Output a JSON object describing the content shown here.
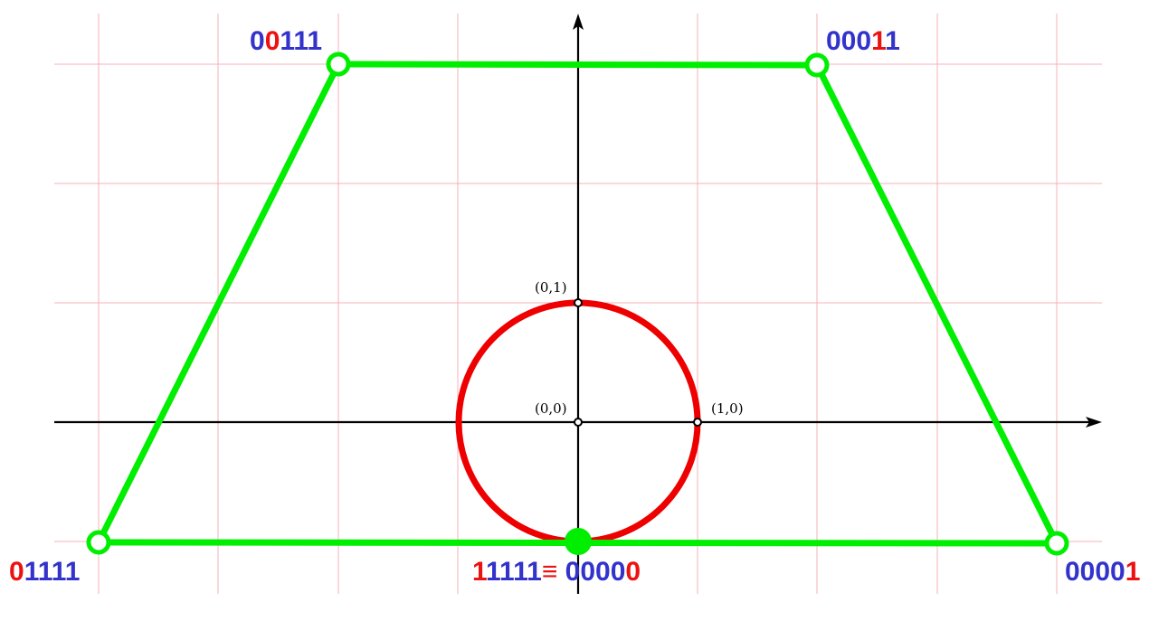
{
  "colors": {
    "grid": "#f4b0b8",
    "polygon": "#00ee00",
    "circle": "#ee0000",
    "digit_red": "#ee1111",
    "digit_blue": "#3333cc",
    "axis": "#000000"
  },
  "points": {
    "origin": "(0,0)",
    "unit_x": "(1,0)",
    "unit_y": "(0,1)"
  },
  "vertex_labels": {
    "top_left": {
      "parts": [
        {
          "text": "0",
          "color": "blue"
        },
        {
          "text": "0",
          "color": "red"
        },
        {
          "text": "111",
          "color": "blue"
        }
      ]
    },
    "top_right": {
      "parts": [
        {
          "text": "000",
          "color": "blue"
        },
        {
          "text": "1",
          "color": "red"
        },
        {
          "text": "1",
          "color": "blue"
        }
      ]
    },
    "bottom_left": {
      "parts": [
        {
          "text": "0",
          "color": "red"
        },
        {
          "text": "1111",
          "color": "blue"
        }
      ]
    },
    "bottom_right": {
      "parts": [
        {
          "text": "0000",
          "color": "blue"
        },
        {
          "text": "1",
          "color": "red"
        }
      ]
    },
    "bottom_center": {
      "parts": [
        {
          "text": "1",
          "color": "red"
        },
        {
          "text": "1111",
          "color": "blue"
        },
        {
          "text": "≡",
          "color": "red"
        },
        {
          "text": " 0000",
          "color": "blue"
        },
        {
          "text": "0",
          "color": "red"
        }
      ]
    }
  }
}
